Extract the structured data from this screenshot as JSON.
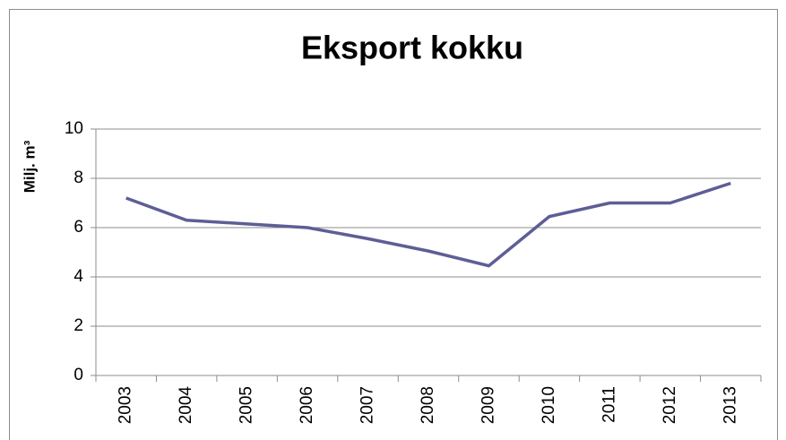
{
  "chart_data": {
    "type": "line",
    "title": "Eksport kokku",
    "y_label": "Milj. m³",
    "categories": [
      "2003",
      "2004",
      "2005",
      "2006",
      "2007",
      "2008",
      "2009",
      "2010",
      "2011",
      "2012",
      "2013"
    ],
    "values": [
      7.2,
      6.3,
      6.15,
      6.0,
      5.55,
      5.05,
      4.45,
      6.45,
      7.0,
      7.0,
      7.8
    ],
    "color": "#5e5e96",
    "ylim": [
      0,
      10
    ],
    "yticks": [
      0,
      2,
      4,
      6,
      8,
      10
    ],
    "grid": true
  }
}
